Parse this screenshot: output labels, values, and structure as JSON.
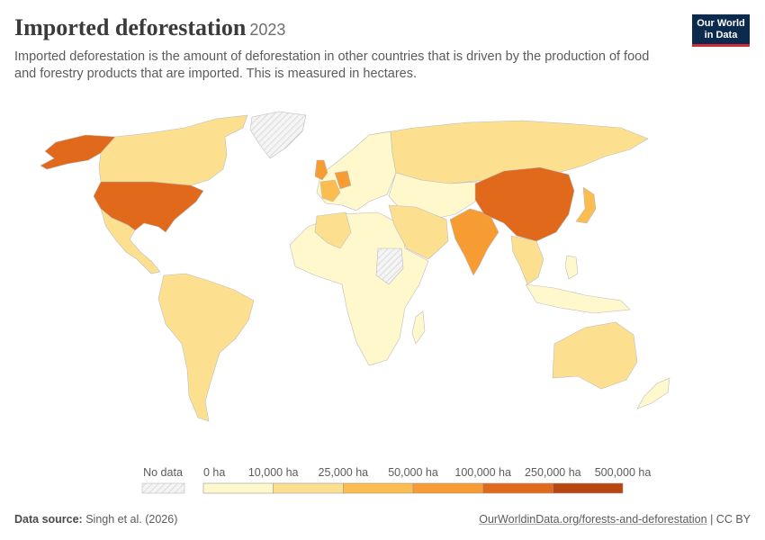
{
  "header": {
    "title": "Imported deforestation",
    "year": "2023",
    "subtitle": "Imported deforestation is the amount of deforestation in other countries that is driven by the production of food and forestry products that are imported. This is measured in hectares."
  },
  "logo": {
    "line1": "Our World",
    "line2": "in Data"
  },
  "legend": {
    "no_data_label": "No data",
    "labels": [
      "0 ha",
      "10,000 ha",
      "25,000 ha",
      "50,000 ha",
      "100,000 ha",
      "250,000 ha",
      "500,000 ha"
    ],
    "colors": [
      "#fff8cc",
      "#fde08f",
      "#fbbd4f",
      "#f79b33",
      "#e0691b",
      "#b8460e"
    ]
  },
  "map_colors": {
    "bin0": "#fff8cc",
    "bin1": "#fde08f",
    "bin2": "#fbbd4f",
    "bin3": "#f79b33",
    "bin4": "#e0691b",
    "bin5": "#b8460e",
    "no_data": "#eeeeee"
  },
  "footer": {
    "source_label": "Data source:",
    "source_text": "Singh et al. (2026)",
    "url": "OurWorldinData.org/forests-and-deforestation",
    "license": " | CC BY"
  }
}
